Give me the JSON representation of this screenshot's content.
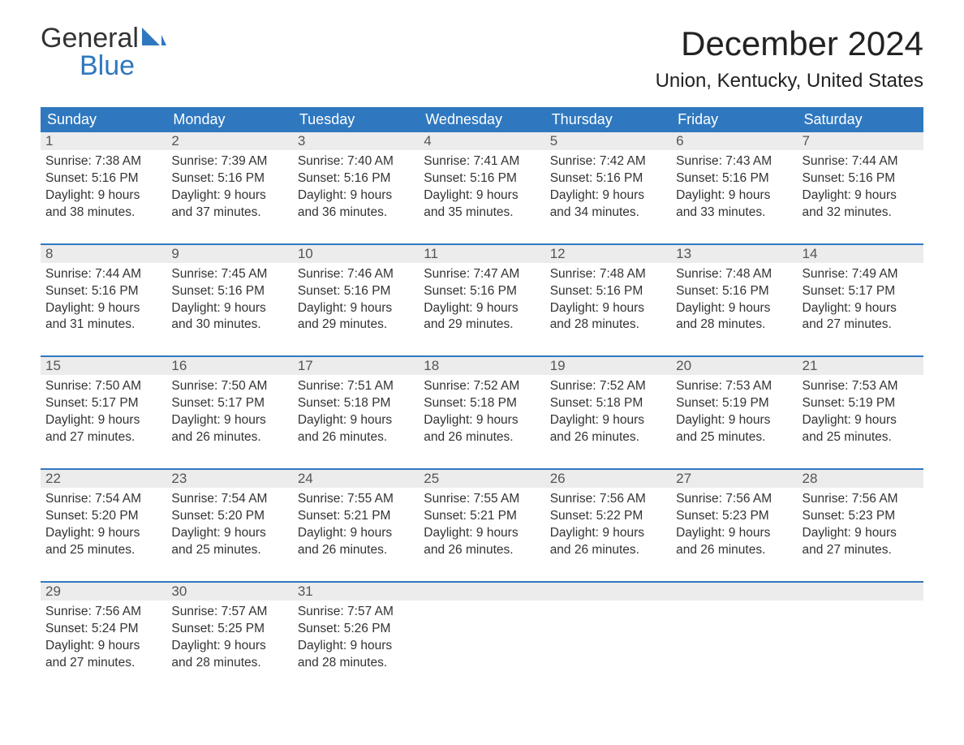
{
  "logo": {
    "line1": "General",
    "line2": "Blue"
  },
  "title": "December 2024",
  "location": "Union, Kentucky, United States",
  "colors": {
    "header_bg": "#2f78bf",
    "header_text": "#ffffff",
    "daynum_bg": "#ececec",
    "text": "#333333",
    "logo_blue": "#2f78bf",
    "page_bg": "#ffffff"
  },
  "day_headers": [
    "Sunday",
    "Monday",
    "Tuesday",
    "Wednesday",
    "Thursday",
    "Friday",
    "Saturday"
  ],
  "weeks": [
    [
      {
        "num": "1",
        "sunrise": "7:38 AM",
        "sunset": "5:16 PM",
        "dl1": "9 hours",
        "dl2": "and 38 minutes."
      },
      {
        "num": "2",
        "sunrise": "7:39 AM",
        "sunset": "5:16 PM",
        "dl1": "9 hours",
        "dl2": "and 37 minutes."
      },
      {
        "num": "3",
        "sunrise": "7:40 AM",
        "sunset": "5:16 PM",
        "dl1": "9 hours",
        "dl2": "and 36 minutes."
      },
      {
        "num": "4",
        "sunrise": "7:41 AM",
        "sunset": "5:16 PM",
        "dl1": "9 hours",
        "dl2": "and 35 minutes."
      },
      {
        "num": "5",
        "sunrise": "7:42 AM",
        "sunset": "5:16 PM",
        "dl1": "9 hours",
        "dl2": "and 34 minutes."
      },
      {
        "num": "6",
        "sunrise": "7:43 AM",
        "sunset": "5:16 PM",
        "dl1": "9 hours",
        "dl2": "and 33 minutes."
      },
      {
        "num": "7",
        "sunrise": "7:44 AM",
        "sunset": "5:16 PM",
        "dl1": "9 hours",
        "dl2": "and 32 minutes."
      }
    ],
    [
      {
        "num": "8",
        "sunrise": "7:44 AM",
        "sunset": "5:16 PM",
        "dl1": "9 hours",
        "dl2": "and 31 minutes."
      },
      {
        "num": "9",
        "sunrise": "7:45 AM",
        "sunset": "5:16 PM",
        "dl1": "9 hours",
        "dl2": "and 30 minutes."
      },
      {
        "num": "10",
        "sunrise": "7:46 AM",
        "sunset": "5:16 PM",
        "dl1": "9 hours",
        "dl2": "and 29 minutes."
      },
      {
        "num": "11",
        "sunrise": "7:47 AM",
        "sunset": "5:16 PM",
        "dl1": "9 hours",
        "dl2": "and 29 minutes."
      },
      {
        "num": "12",
        "sunrise": "7:48 AM",
        "sunset": "5:16 PM",
        "dl1": "9 hours",
        "dl2": "and 28 minutes."
      },
      {
        "num": "13",
        "sunrise": "7:48 AM",
        "sunset": "5:16 PM",
        "dl1": "9 hours",
        "dl2": "and 28 minutes."
      },
      {
        "num": "14",
        "sunrise": "7:49 AM",
        "sunset": "5:17 PM",
        "dl1": "9 hours",
        "dl2": "and 27 minutes."
      }
    ],
    [
      {
        "num": "15",
        "sunrise": "7:50 AM",
        "sunset": "5:17 PM",
        "dl1": "9 hours",
        "dl2": "and 27 minutes."
      },
      {
        "num": "16",
        "sunrise": "7:50 AM",
        "sunset": "5:17 PM",
        "dl1": "9 hours",
        "dl2": "and 26 minutes."
      },
      {
        "num": "17",
        "sunrise": "7:51 AM",
        "sunset": "5:18 PM",
        "dl1": "9 hours",
        "dl2": "and 26 minutes."
      },
      {
        "num": "18",
        "sunrise": "7:52 AM",
        "sunset": "5:18 PM",
        "dl1": "9 hours",
        "dl2": "and 26 minutes."
      },
      {
        "num": "19",
        "sunrise": "7:52 AM",
        "sunset": "5:18 PM",
        "dl1": "9 hours",
        "dl2": "and 26 minutes."
      },
      {
        "num": "20",
        "sunrise": "7:53 AM",
        "sunset": "5:19 PM",
        "dl1": "9 hours",
        "dl2": "and 25 minutes."
      },
      {
        "num": "21",
        "sunrise": "7:53 AM",
        "sunset": "5:19 PM",
        "dl1": "9 hours",
        "dl2": "and 25 minutes."
      }
    ],
    [
      {
        "num": "22",
        "sunrise": "7:54 AM",
        "sunset": "5:20 PM",
        "dl1": "9 hours",
        "dl2": "and 25 minutes."
      },
      {
        "num": "23",
        "sunrise": "7:54 AM",
        "sunset": "5:20 PM",
        "dl1": "9 hours",
        "dl2": "and 25 minutes."
      },
      {
        "num": "24",
        "sunrise": "7:55 AM",
        "sunset": "5:21 PM",
        "dl1": "9 hours",
        "dl2": "and 26 minutes."
      },
      {
        "num": "25",
        "sunrise": "7:55 AM",
        "sunset": "5:21 PM",
        "dl1": "9 hours",
        "dl2": "and 26 minutes."
      },
      {
        "num": "26",
        "sunrise": "7:56 AM",
        "sunset": "5:22 PM",
        "dl1": "9 hours",
        "dl2": "and 26 minutes."
      },
      {
        "num": "27",
        "sunrise": "7:56 AM",
        "sunset": "5:23 PM",
        "dl1": "9 hours",
        "dl2": "and 26 minutes."
      },
      {
        "num": "28",
        "sunrise": "7:56 AM",
        "sunset": "5:23 PM",
        "dl1": "9 hours",
        "dl2": "and 27 minutes."
      }
    ],
    [
      {
        "num": "29",
        "sunrise": "7:56 AM",
        "sunset": "5:24 PM",
        "dl1": "9 hours",
        "dl2": "and 27 minutes."
      },
      {
        "num": "30",
        "sunrise": "7:57 AM",
        "sunset": "5:25 PM",
        "dl1": "9 hours",
        "dl2": "and 28 minutes."
      },
      {
        "num": "31",
        "sunrise": "7:57 AM",
        "sunset": "5:26 PM",
        "dl1": "9 hours",
        "dl2": "and 28 minutes."
      },
      null,
      null,
      null,
      null
    ]
  ],
  "labels": {
    "sunrise_prefix": "Sunrise: ",
    "sunset_prefix": "Sunset: ",
    "daylight_prefix": "Daylight: "
  }
}
